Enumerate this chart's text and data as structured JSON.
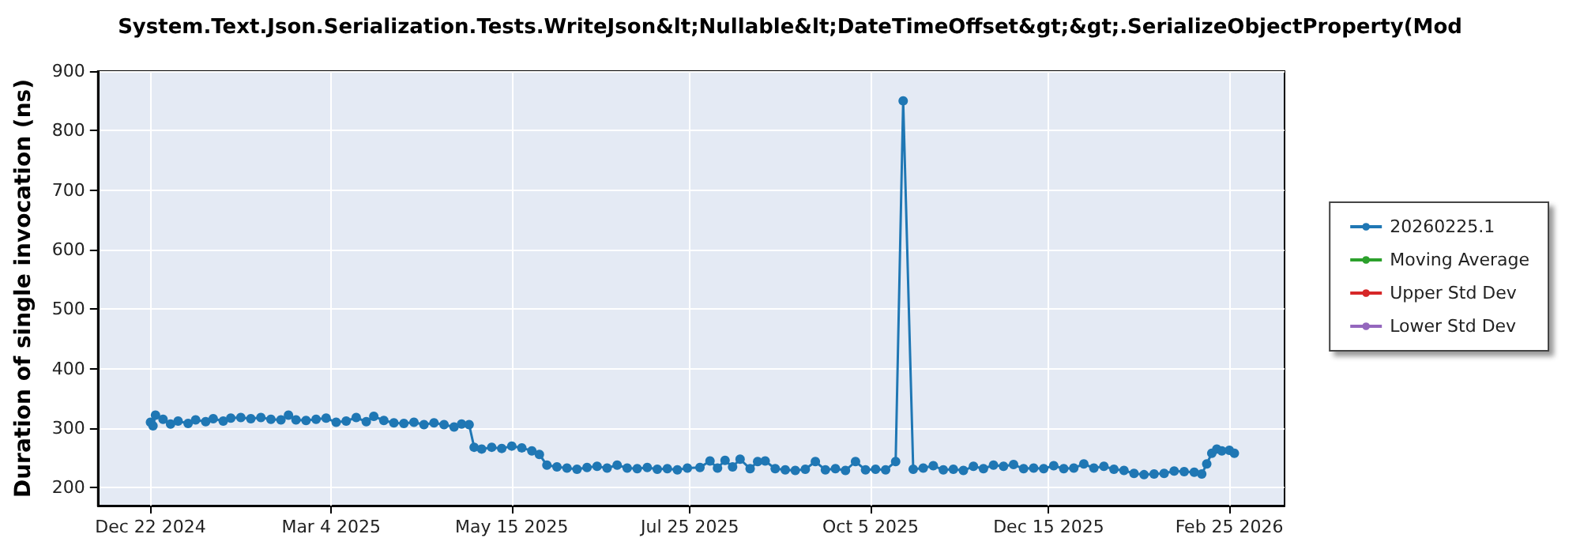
{
  "chart_data": {
    "type": "line",
    "title": "System.Text.Json.Serialization.Tests.WriteJson&lt;Nullable&lt;DateTimeOffset&gt;&gt;.SerializeObjectProperty(Mod",
    "ylabel": "Duration of single invocation (ns)",
    "xlim": [
      "2024-12-01",
      "2026-03-19"
    ],
    "xticks": [
      {
        "value": "2024-12-22",
        "label": "Dec 22 2024"
      },
      {
        "value": "2025-03-04",
        "label": "Mar 4 2025"
      },
      {
        "value": "2025-05-15",
        "label": "May 15 2025"
      },
      {
        "value": "2025-07-25",
        "label": "Jul 25 2025"
      },
      {
        "value": "2025-10-05",
        "label": "Oct 5 2025"
      },
      {
        "value": "2025-12-15",
        "label": "Dec 15 2025"
      },
      {
        "value": "2026-02-25",
        "label": "Feb 25 2026"
      }
    ],
    "ylim": [
      170,
      900
    ],
    "yticks": [
      200,
      300,
      400,
      500,
      600,
      700,
      800,
      900
    ],
    "grid": true,
    "legend": "right",
    "marker": "circle",
    "line_style": "solid",
    "series": [
      {
        "name": "20260225.1",
        "color": "#1f77b4",
        "x": [
          "2024-12-22",
          "2024-12-23",
          "2024-12-24",
          "2024-12-27",
          "2024-12-30",
          "2025-01-02",
          "2025-01-06",
          "2025-01-09",
          "2025-01-13",
          "2025-01-16",
          "2025-01-20",
          "2025-01-23",
          "2025-01-27",
          "2025-01-31",
          "2025-02-04",
          "2025-02-08",
          "2025-02-12",
          "2025-02-15",
          "2025-02-18",
          "2025-02-22",
          "2025-02-26",
          "2025-03-02",
          "2025-03-06",
          "2025-03-10",
          "2025-03-14",
          "2025-03-18",
          "2025-03-21",
          "2025-03-25",
          "2025-03-29",
          "2025-04-02",
          "2025-04-06",
          "2025-04-10",
          "2025-04-14",
          "2025-04-18",
          "2025-04-22",
          "2025-04-25",
          "2025-04-28",
          "2025-04-30",
          "2025-05-03",
          "2025-05-07",
          "2025-05-11",
          "2025-05-15",
          "2025-05-19",
          "2025-05-23",
          "2025-05-26",
          "2025-05-29",
          "2025-06-02",
          "2025-06-06",
          "2025-06-10",
          "2025-06-14",
          "2025-06-18",
          "2025-06-22",
          "2025-06-26",
          "2025-06-30",
          "2025-07-04",
          "2025-07-08",
          "2025-07-12",
          "2025-07-16",
          "2025-07-20",
          "2025-07-24",
          "2025-07-29",
          "2025-08-02",
          "2025-08-05",
          "2025-08-08",
          "2025-08-11",
          "2025-08-14",
          "2025-08-18",
          "2025-08-21",
          "2025-08-24",
          "2025-08-28",
          "2025-09-01",
          "2025-09-05",
          "2025-09-09",
          "2025-09-13",
          "2025-09-17",
          "2025-09-21",
          "2025-09-25",
          "2025-09-29",
          "2025-10-03",
          "2025-10-07",
          "2025-10-11",
          "2025-10-15",
          "2025-10-18",
          "2025-10-22",
          "2025-10-26",
          "2025-10-30",
          "2025-11-03",
          "2025-11-07",
          "2025-11-11",
          "2025-11-15",
          "2025-11-19",
          "2025-11-23",
          "2025-11-27",
          "2025-12-01",
          "2025-12-05",
          "2025-12-09",
          "2025-12-13",
          "2025-12-17",
          "2025-12-21",
          "2025-12-25",
          "2025-12-29",
          "2026-01-02",
          "2026-01-06",
          "2026-01-10",
          "2026-01-14",
          "2026-01-18",
          "2026-01-22",
          "2026-01-26",
          "2026-01-30",
          "2026-02-03",
          "2026-02-07",
          "2026-02-11",
          "2026-02-14",
          "2026-02-16",
          "2026-02-18",
          "2026-02-20",
          "2026-02-22",
          "2026-02-25",
          "2026-02-27"
        ],
        "values": [
          310,
          304,
          322,
          315,
          307,
          312,
          308,
          314,
          311,
          316,
          312,
          317,
          318,
          316,
          318,
          315,
          314,
          322,
          314,
          313,
          315,
          317,
          310,
          312,
          318,
          311,
          320,
          313,
          309,
          308,
          310,
          306,
          309,
          306,
          302,
          307,
          306,
          268,
          265,
          268,
          266,
          270,
          267,
          262,
          256,
          238,
          235,
          233,
          231,
          234,
          236,
          233,
          238,
          233,
          232,
          234,
          231,
          232,
          230,
          233,
          234,
          245,
          233,
          246,
          235,
          248,
          232,
          244,
          245,
          232,
          230,
          229,
          231,
          244,
          230,
          232,
          229,
          244,
          230,
          231,
          230,
          244,
          850,
          231,
          233,
          237,
          230,
          231,
          229,
          236,
          232,
          238,
          236,
          239,
          232,
          233,
          232,
          237,
          232,
          233,
          240,
          233,
          236,
          231,
          229,
          224,
          222,
          223,
          224,
          228,
          227,
          226,
          223,
          240,
          258,
          265,
          262,
          263,
          258
        ]
      },
      {
        "name": "Moving Average",
        "color": "#2ca02c"
      },
      {
        "name": "Upper Std Dev",
        "color": "#d62728"
      },
      {
        "name": "Lower Std Dev",
        "color": "#9467bd"
      }
    ]
  }
}
